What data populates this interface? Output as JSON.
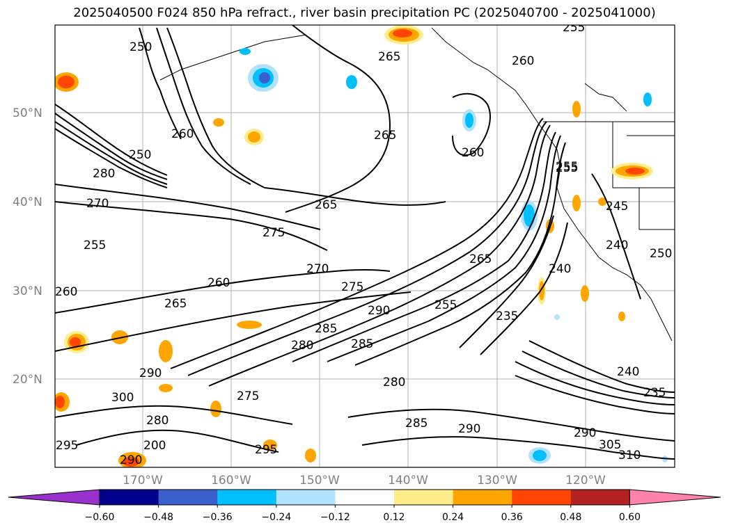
{
  "title": "2025040500 F024 850 hPa refract., river basin precipitation PC (2025040700 - 2025041000)",
  "lat_labels": [
    "50°N",
    "40°N",
    "30°N",
    "20°N"
  ],
  "lon_labels": [
    "170°W",
    "160°W",
    "150°W",
    "140°W",
    "130°W",
    "120°W"
  ],
  "contour_labels": [
    "250",
    "255",
    "265",
    "265",
    "260",
    "260",
    "255",
    "275",
    "250",
    "280",
    "270",
    "270",
    "265",
    "275",
    "255",
    "260",
    "265",
    "285",
    "290",
    "265",
    "255",
    "240",
    "245",
    "240",
    "250",
    "280",
    "275",
    "255",
    "235",
    "240",
    "235",
    "290",
    "300",
    "280",
    "295",
    "290",
    "285",
    "290",
    "290",
    "305",
    "310",
    "295",
    "200",
    "260",
    "285",
    "280",
    "260"
  ],
  "colorbar": {
    "ticks": [
      "−0.60",
      "−0.48",
      "−0.36",
      "−0.24",
      "−0.12",
      "0.12",
      "0.24",
      "0.36",
      "0.48",
      "0.60"
    ],
    "colors": [
      "#9932CC",
      "#00008B",
      "#3A5FCD",
      "#00BFFF",
      "#B0E2FF",
      "#FFFFFF",
      "#FFEC8B",
      "#FFA500",
      "#FF4500",
      "#B22222",
      "#FF82AB"
    ]
  }
}
